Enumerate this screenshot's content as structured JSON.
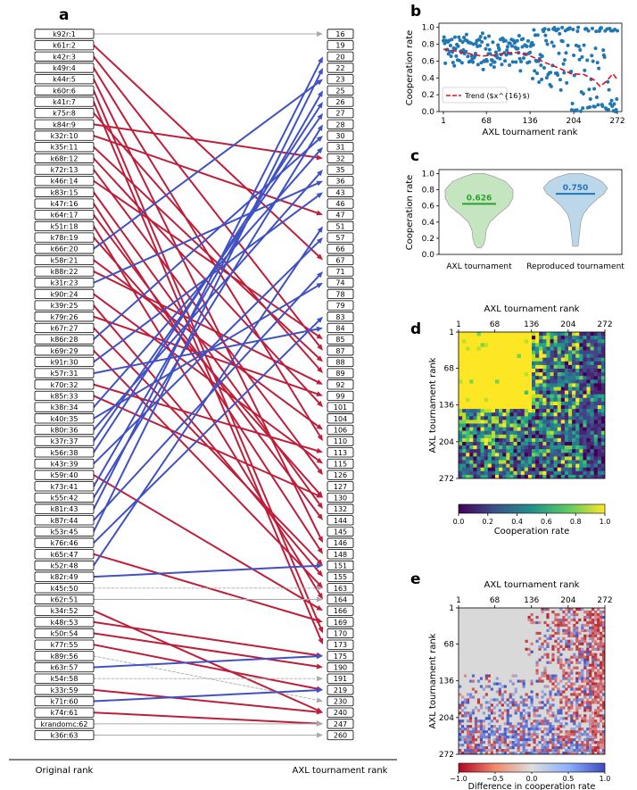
{
  "figure": {
    "panel_letters": [
      "a",
      "b",
      "c",
      "d",
      "e"
    ]
  },
  "colors": {
    "up": "#3f51c4",
    "down": "#be1e3a",
    "same": "#aaaaaa",
    "violin_axl_fill": "#c5e5c1",
    "violin_axl_line": "#2ca02c",
    "violin_rep_fill": "#bcd7ea",
    "violin_rep_line": "#1f77b4",
    "scatter": "#1f77b4",
    "trend": "#e0102a",
    "heatmap_gray": "#d9d9d9"
  },
  "chart_data": [
    {
      "panel": "a",
      "type": "bump",
      "xlabel_left": "Original rank",
      "xlabel_right": "AXL tournament rank",
      "left_labels": [
        "k92r:1",
        "k61r:2",
        "k42r:3",
        "k49r:4",
        "k44r:5",
        "k60r:6",
        "k41r:7",
        "k75r:8",
        "k84r:9",
        "k32r:10",
        "k35r:11",
        "k68r:12",
        "k72r:13",
        "k46r:14",
        "k83r:15",
        "k47r:16",
        "k64r:17",
        "k51r:18",
        "k78r:19",
        "k66r:20",
        "k58r:21",
        "k88r:22",
        "k31r:23",
        "k90r:24",
        "k39r:25",
        "k79r:26",
        "k67r:27",
        "k86r:28",
        "k69r:29",
        "k91r:30",
        "k57r:31",
        "k70r:32",
        "k85r:33",
        "k38r:34",
        "k40r:35",
        "k80r:36",
        "k37r:37",
        "k56r:38",
        "k43r:39",
        "k59r:40",
        "k73r:41",
        "k55r:42",
        "k81r:43",
        "k87r:44",
        "k53r:45",
        "k76r:46",
        "k65r:47",
        "k52r:48",
        "k82r:49",
        "k45r:50",
        "k62r:51",
        "k34r:52",
        "k48r:53",
        "k50r:54",
        "k77r:55",
        "k89r:56",
        "k63r:57",
        "k54r:58",
        "k33r:59",
        "k71r:60",
        "k74r:61",
        "krandomc:62",
        "k36r:63"
      ],
      "right_labels": [
        "16",
        "19",
        "20",
        "22",
        "23",
        "25",
        "26",
        "27",
        "28",
        "30",
        "31",
        "32",
        "35",
        "36",
        "43",
        "46",
        "47",
        "51",
        "57",
        "66",
        "67",
        "71",
        "74",
        "78",
        "79",
        "83",
        "84",
        "85",
        "87",
        "88",
        "89",
        "92",
        "99",
        "101",
        "104",
        "106",
        "110",
        "113",
        "115",
        "126",
        "127",
        "130",
        "132",
        "144",
        "145",
        "146",
        "148",
        "151",
        "155",
        "163",
        "164",
        "166",
        "169",
        "170",
        "173",
        "175",
        "190",
        "191",
        "219",
        "230",
        "240",
        "247",
        "260"
      ],
      "mapping": [
        1,
        21,
        29,
        37,
        46,
        54,
        55,
        31,
        12,
        17,
        30,
        34,
        40,
        28,
        43,
        47,
        44,
        51,
        42,
        5,
        36,
        32,
        14,
        39,
        49,
        33,
        48,
        10,
        50,
        15,
        27,
        38,
        42,
        11,
        23,
        13,
        8,
        7,
        19,
        52,
        6,
        9,
        3,
        22,
        4,
        26,
        53,
        18,
        48,
        50,
        51,
        61,
        56,
        57,
        59,
        60,
        56,
        58,
        61,
        59,
        62,
        62,
        63
      ]
    },
    {
      "panel": "b",
      "type": "scatter",
      "xlabel": "AXL tournament rank",
      "ylabel": "Cooperation rate",
      "xticks": [
        1,
        68,
        136,
        204,
        272
      ],
      "yticks": [
        0.0,
        0.2,
        0.4,
        0.6,
        0.8,
        1.0
      ],
      "xlim": [
        1,
        272
      ],
      "ylim": [
        0.0,
        1.05
      ],
      "legend": "Trend ($x^{16}$)",
      "legend_placement": "lower-left",
      "trend": {
        "x": [
          1,
          20,
          40,
          60,
          80,
          100,
          120,
          140,
          160,
          180,
          200,
          220,
          235,
          245,
          255,
          265,
          272
        ],
        "y": [
          0.74,
          0.72,
          0.69,
          0.66,
          0.67,
          0.7,
          0.7,
          0.65,
          0.58,
          0.52,
          0.45,
          0.44,
          0.38,
          0.3,
          0.36,
          0.45,
          0.38
        ]
      }
    },
    {
      "panel": "c",
      "type": "violin",
      "ylabel": "Cooperation rate",
      "categories": [
        "AXL tournament",
        "Reproduced tournament"
      ],
      "means": [
        0.626,
        0.75
      ],
      "mean_labels": [
        "0.626",
        "0.750"
      ],
      "yticks": [
        0.0,
        0.2,
        0.4,
        0.6,
        0.8,
        1.0
      ],
      "ylim": [
        0.0,
        1.05
      ]
    },
    {
      "panel": "d",
      "type": "heatmap",
      "xlabel": "AXL tournament rank",
      "ylabel": "AXL tournament rank",
      "xticks": [
        1,
        68,
        136,
        204,
        272
      ],
      "yticks": [
        1,
        68,
        136,
        204,
        272
      ],
      "colorbar_label": "Cooperation rate",
      "colorbar_ticks": [
        "0.0",
        "0.2",
        "0.4",
        "0.6",
        "0.8",
        "1.0"
      ],
      "colormap": "viridis"
    },
    {
      "panel": "e",
      "type": "heatmap",
      "xlabel": "AXL tournament rank",
      "ylabel": "AXL tournament rank",
      "xticks": [
        1,
        68,
        136,
        204,
        272
      ],
      "yticks": [
        1,
        68,
        136,
        204,
        272
      ],
      "colorbar_label": "Difference in cooperation rate",
      "colorbar_ticks": [
        "−1.0",
        "−0.5",
        "0.0",
        "0.5",
        "1.0"
      ],
      "colormap": "coolwarm_r"
    }
  ]
}
